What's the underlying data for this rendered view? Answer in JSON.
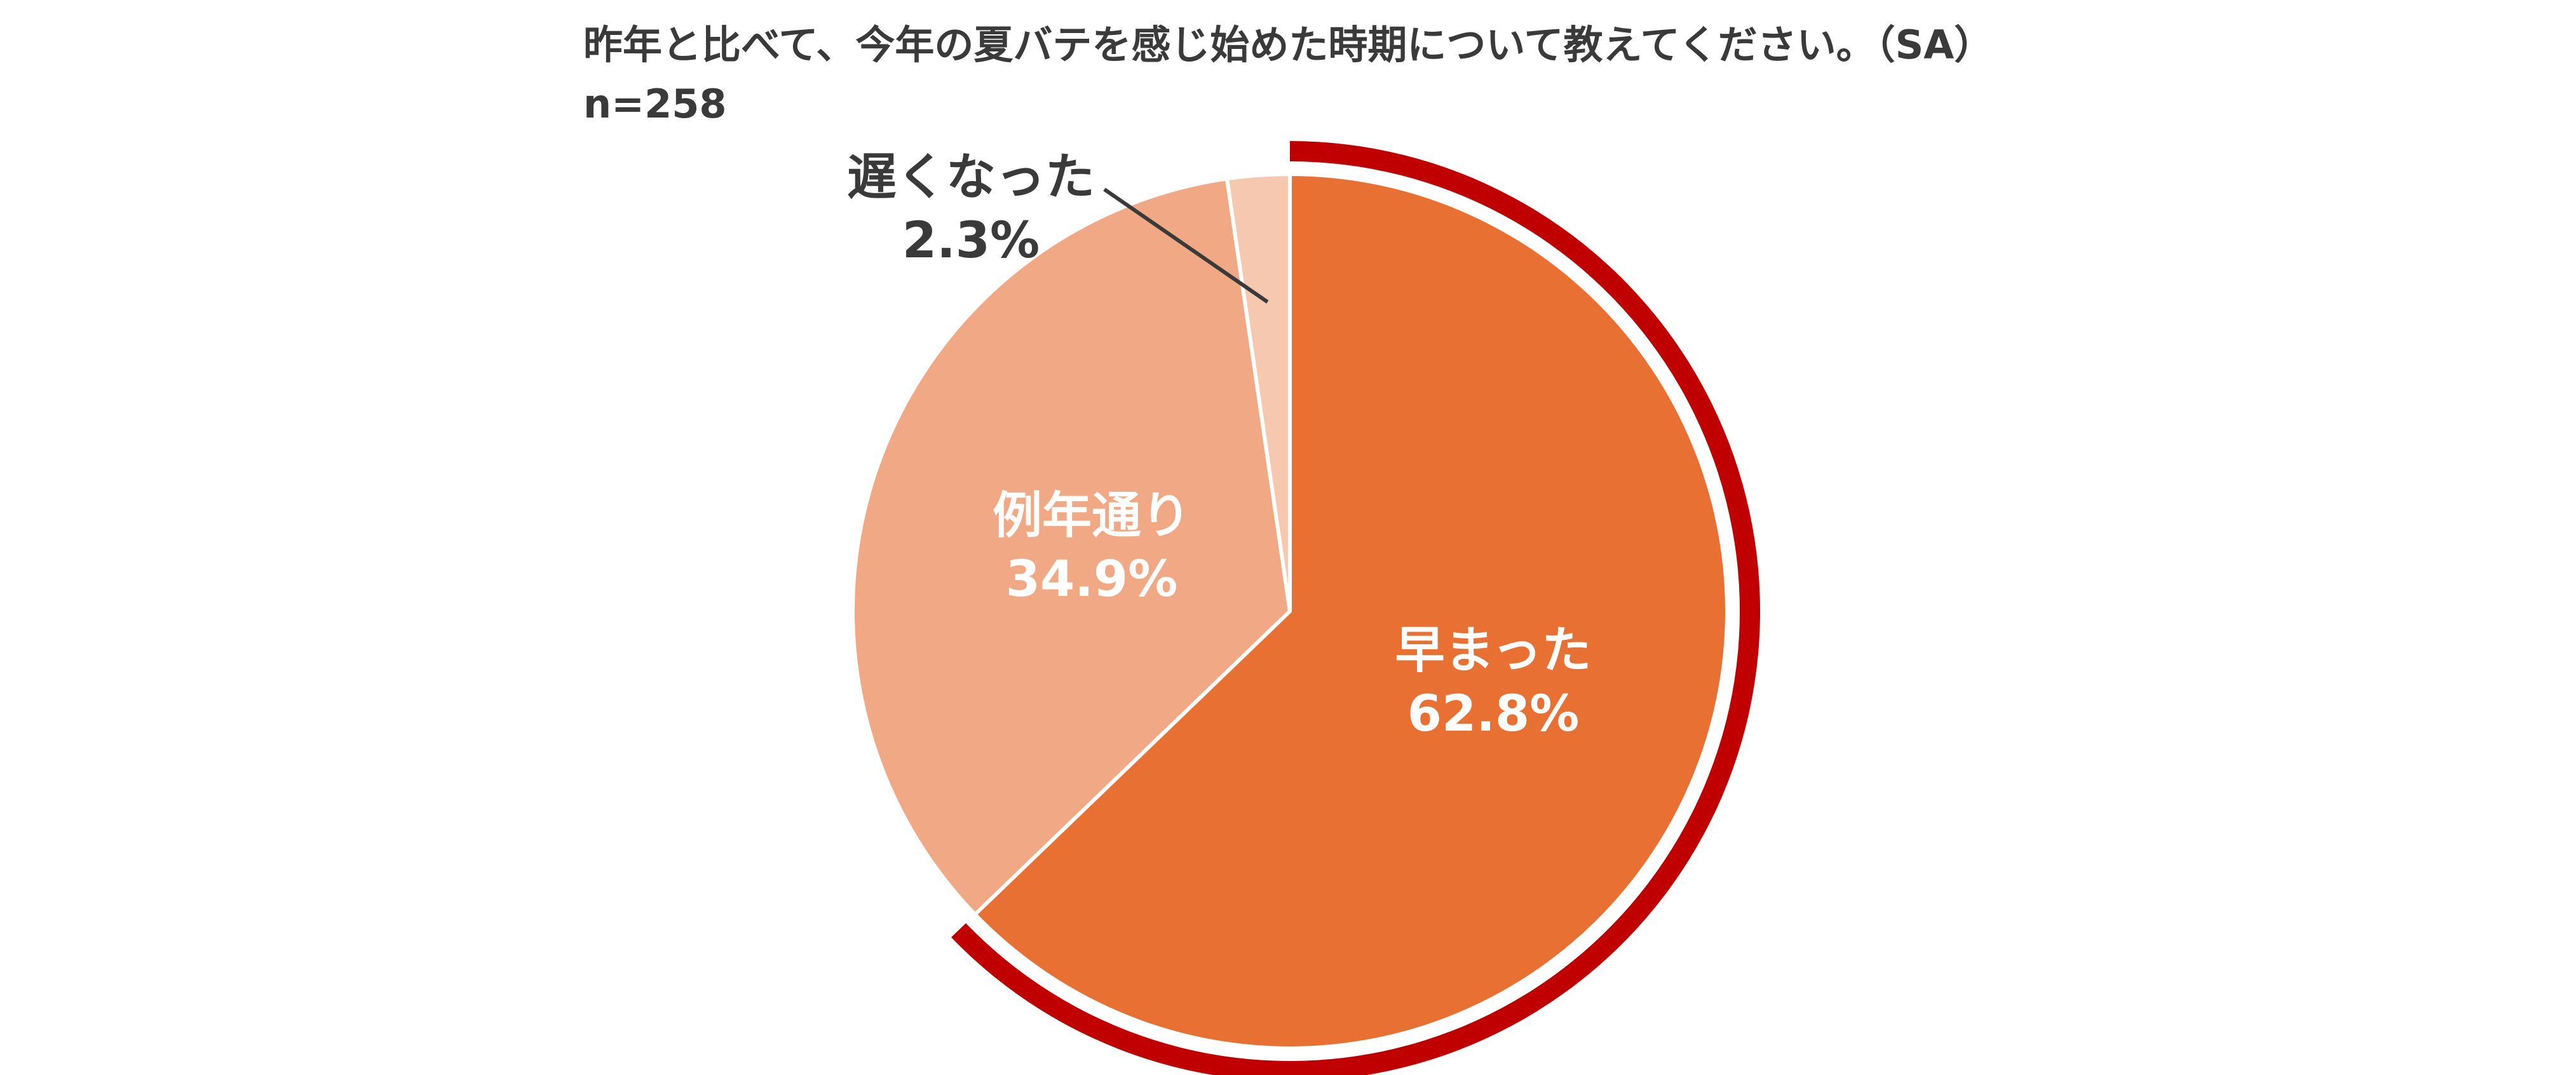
{
  "chart_data": {
    "type": "pie",
    "title": "昨年と比べて、今年の夏バテを感じ始めた時期について教えてください。（SA）",
    "subtitle": "n=258",
    "start_angle_deg": 0,
    "direction": "clockwise",
    "highlight_slice": 0,
    "slices": [
      {
        "label": "早まった",
        "value": 62.8,
        "value_label": "62.8%",
        "color": "#e87033",
        "label_color": "#ffffff"
      },
      {
        "label": "例年通り",
        "value": 34.9,
        "value_label": "34.9%",
        "color": "#f1a985",
        "label_color": "#ffffff"
      },
      {
        "label": "遅くなった",
        "value": 2.3,
        "value_label": "2.3%",
        "color": "#f6c8b0",
        "label_color": "#3a3a3a"
      }
    ],
    "highlight_color": "#c00000",
    "legend": "none"
  }
}
